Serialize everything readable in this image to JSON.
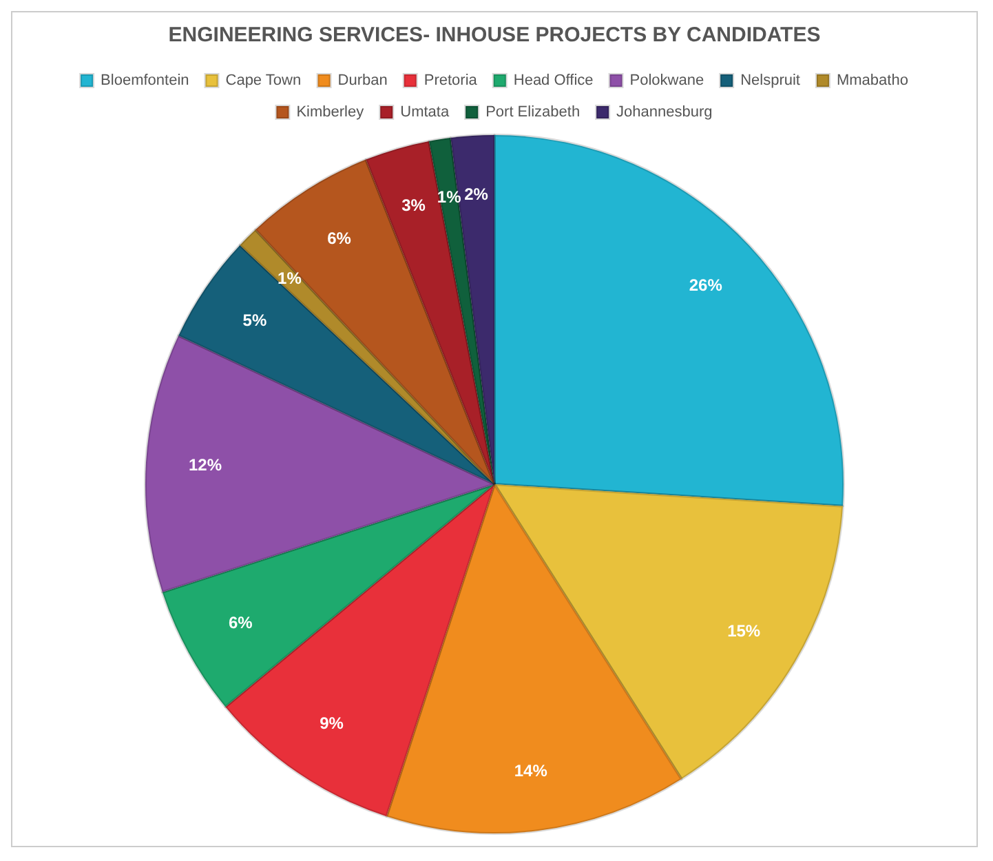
{
  "chart_data": {
    "type": "pie",
    "title": "ENGINEERING SERVICES- INHOUSE PROJECTS BY CANDIDATES",
    "categories": [
      "Bloemfontein",
      "Cape Town",
      "Durban",
      "Pretoria",
      "Head Office",
      "Polokwane",
      "Nelspruit",
      "Mmabatho",
      "Kimberley",
      "Umtata",
      "Port Elizabeth",
      "Johannesburg"
    ],
    "values": [
      26,
      15,
      14,
      9,
      6,
      12,
      5,
      1,
      6,
      3,
      1,
      2
    ],
    "colors": [
      "#22b5d2",
      "#e8c13c",
      "#f08c1e",
      "#e8303a",
      "#1eaa6e",
      "#8e50a8",
      "#15607a",
      "#b08a2a",
      "#b5561e",
      "#a82028",
      "#10603c",
      "#3c2a6c"
    ],
    "value_labels": [
      "26%",
      "15%",
      "14%",
      "9%",
      "6%",
      "12%",
      "5%",
      "1%",
      "6%",
      "3%",
      "1%",
      "2%"
    ],
    "legend": "top"
  }
}
